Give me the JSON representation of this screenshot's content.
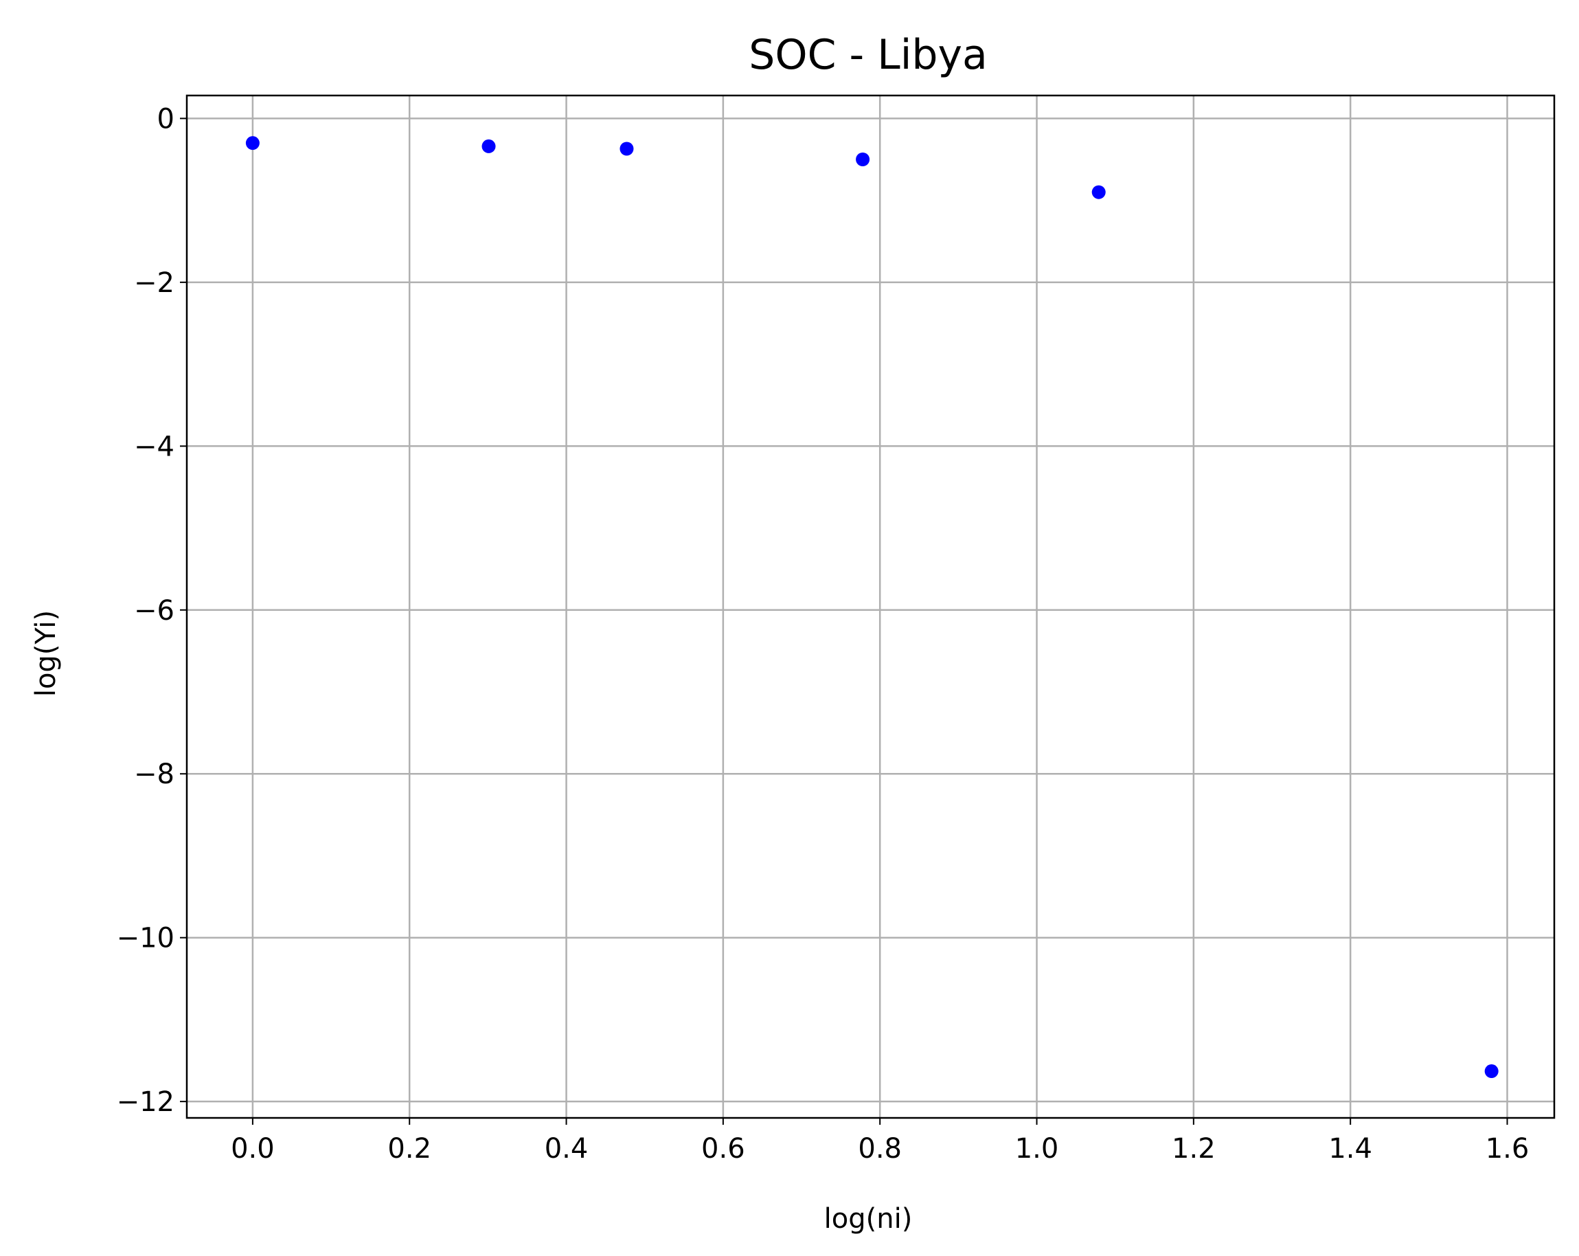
{
  "chart_data": {
    "type": "scatter",
    "title": "SOC - Libya",
    "xlabel": "log(ni)",
    "ylabel": "log(Yi)",
    "xlim": [
      -0.084,
      1.66
    ],
    "ylim": [
      -12.2,
      0.28
    ],
    "x_ticks": [
      0.0,
      0.2,
      0.4,
      0.6,
      0.8,
      1.0,
      1.2,
      1.4,
      1.6
    ],
    "x_tick_labels": [
      "0.0",
      "0.2",
      "0.4",
      "0.6",
      "0.8",
      "1.0",
      "1.2",
      "1.4",
      "1.6"
    ],
    "y_ticks": [
      0,
      -2,
      -4,
      -6,
      -8,
      -10,
      -12
    ],
    "y_tick_labels": [
      "0",
      "−2",
      "−4",
      "−6",
      "−8",
      "−10",
      "−12"
    ],
    "grid": true,
    "marker_color": "#0000ff",
    "series": [
      {
        "x": [
          0.0,
          0.301,
          0.477,
          0.778,
          1.079,
          1.58
        ],
        "y": [
          -0.3,
          -0.34,
          -0.37,
          -0.5,
          -0.9,
          -11.63
        ]
      }
    ]
  }
}
